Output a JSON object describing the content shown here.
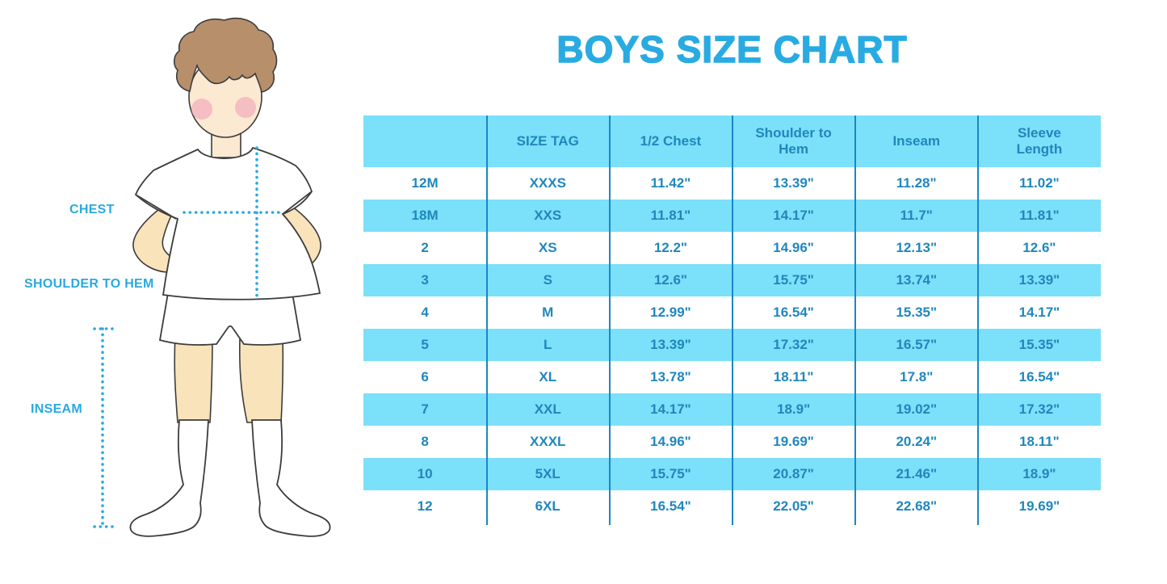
{
  "title": "BOYS SIZE CHART",
  "figure": {
    "description": "cartoon-boy-with-measurement-lines",
    "labels": {
      "chest": "CHEST",
      "shoulder_to_hem": "SHOULDER TO HEM",
      "inseam": "INSEAM"
    },
    "accent_color": "#29A9E2"
  },
  "chart_data": {
    "type": "table",
    "title": "BOYS SIZE CHART",
    "columns": [
      "",
      "SIZE TAG",
      "1/2 Chest",
      "Shoulder to Hem",
      "Inseam",
      "Sleeve Length"
    ],
    "rows": [
      [
        "12M",
        "XXXS",
        "11.42\"",
        "13.39\"",
        "11.28\"",
        "11.02\""
      ],
      [
        "18M",
        "XXS",
        "11.81\"",
        "14.17\"",
        "11.7\"",
        "11.81\""
      ],
      [
        "2",
        "XS",
        "12.2\"",
        "14.96\"",
        "12.13\"",
        "12.6\""
      ],
      [
        "3",
        "S",
        "12.6\"",
        "15.75\"",
        "13.74\"",
        "13.39\""
      ],
      [
        "4",
        "M",
        "12.99\"",
        "16.54\"",
        "15.35\"",
        "14.17\""
      ],
      [
        "5",
        "L",
        "13.39\"",
        "17.32\"",
        "16.57\"",
        "15.35\""
      ],
      [
        "6",
        "XL",
        "13.78\"",
        "18.11\"",
        "17.8\"",
        "16.54\""
      ],
      [
        "7",
        "XXL",
        "14.17\"",
        "18.9\"",
        "19.02\"",
        "17.32\""
      ],
      [
        "8",
        "XXXL",
        "14.96\"",
        "19.69\"",
        "20.24\"",
        "18.11\""
      ],
      [
        "10",
        "5XL",
        "15.75\"",
        "20.87\"",
        "21.46\"",
        "18.9\""
      ],
      [
        "12",
        "6XL",
        "16.54\"",
        "22.05\"",
        "22.68\"",
        "19.69\""
      ]
    ],
    "layout": {
      "band_color": "#7BE0F9",
      "divider_color": "#1987C4",
      "text_color": "#1F87BD",
      "striping": "header and every second data row are cyan bands"
    }
  }
}
